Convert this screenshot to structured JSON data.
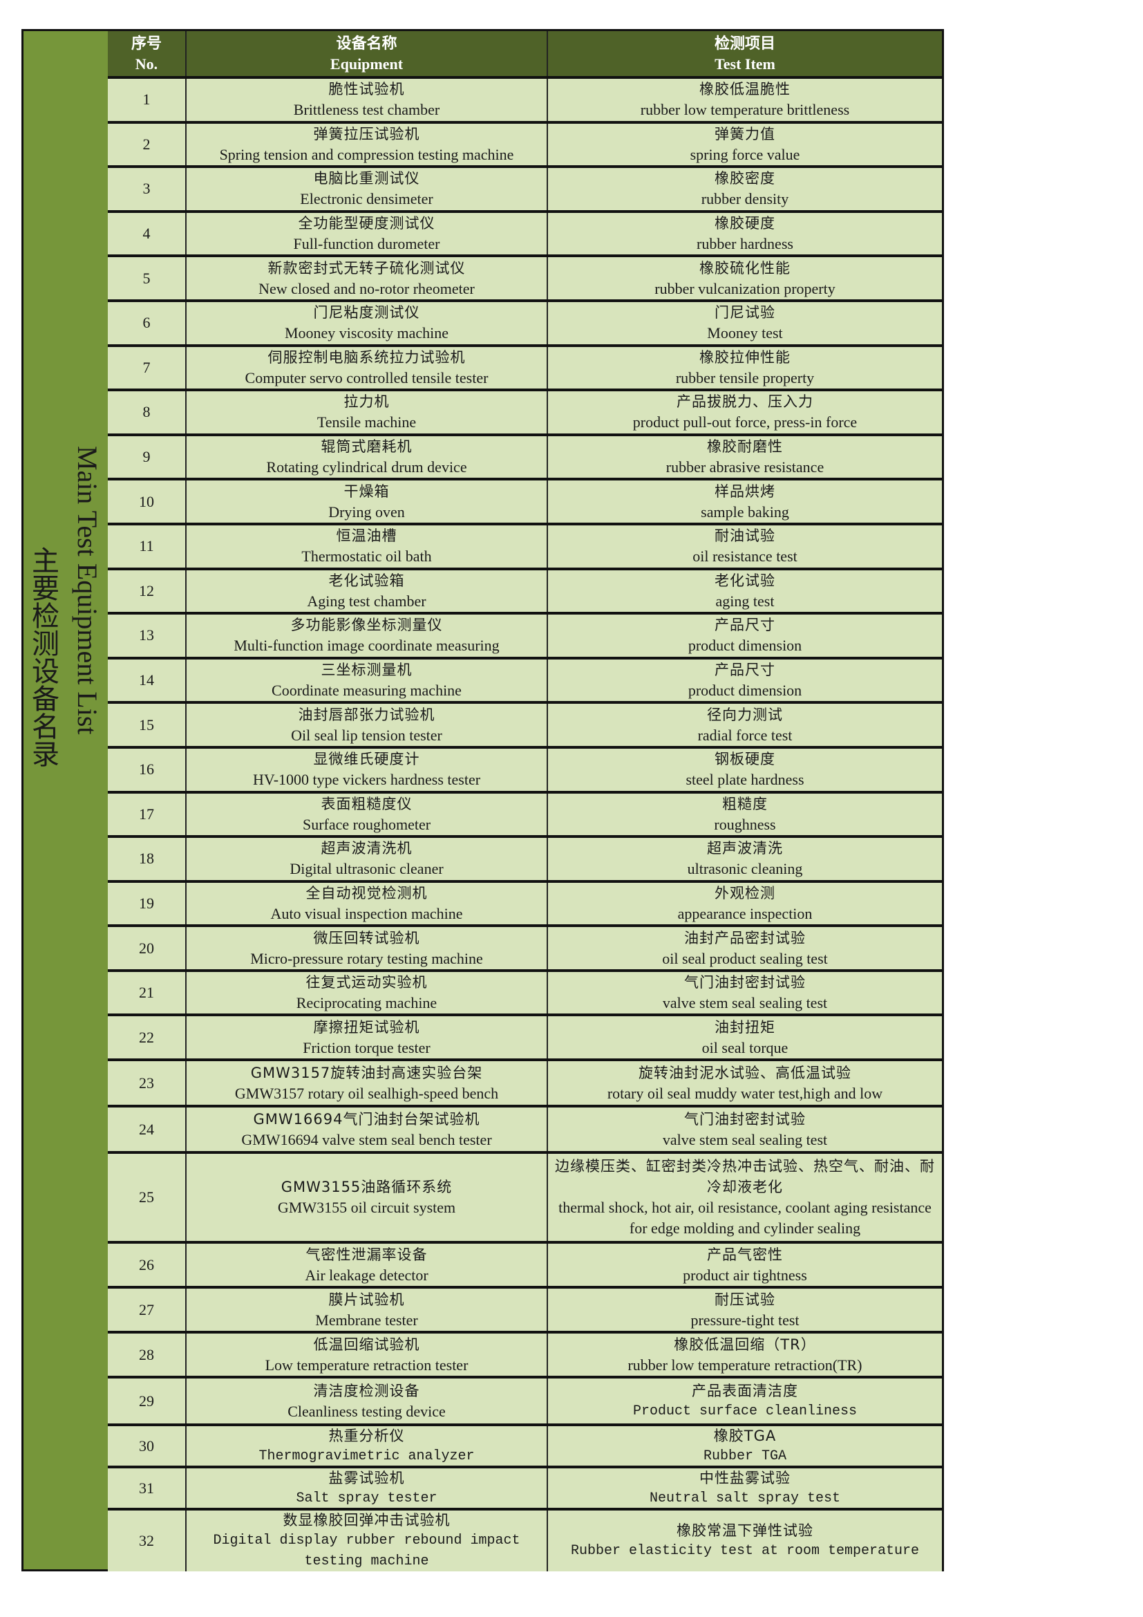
{
  "colors": {
    "side": "#76963a",
    "header": "#4f6228",
    "row": "#d8e4bc",
    "border": "#111111"
  },
  "side_title": {
    "cn": "主要检测设备名录",
    "en": "Main Test Equipment List"
  },
  "header": {
    "no_cn": "序号",
    "no_en": "No.",
    "eq_cn": "设备名称",
    "eq_en": "Equipment",
    "item_cn": "检测项目",
    "item_en": "Test Item"
  },
  "rows": [
    {
      "no": "1",
      "eq_cn": "脆性试验机",
      "eq_en": "Brittleness test chamber",
      "item_cn": "橡胶低温脆性",
      "item_en": "rubber low temperature brittleness"
    },
    {
      "no": "2",
      "eq_cn": "弹簧拉压试验机",
      "eq_en": "Spring tension and compression testing machine",
      "item_cn": "弹簧力值",
      "item_en": "spring force value"
    },
    {
      "no": "3",
      "eq_cn": "电脑比重测试仪",
      "eq_en": "Electronic densimeter",
      "item_cn": "橡胶密度",
      "item_en": "rubber density"
    },
    {
      "no": "4",
      "eq_cn": "全功能型硬度测试仪",
      "eq_en": "Full-function durometer",
      "item_cn": "橡胶硬度",
      "item_en": "rubber hardness"
    },
    {
      "no": "5",
      "eq_cn": "新款密封式无转子硫化测试仪",
      "eq_en": "New closed and no-rotor rheometer",
      "item_cn": "橡胶硫化性能",
      "item_en": "rubber vulcanization property"
    },
    {
      "no": "6",
      "eq_cn": "门尼粘度测试仪",
      "eq_en": "Mooney viscosity machine",
      "item_cn": "门尼试验",
      "item_en": "Mooney test"
    },
    {
      "no": "7",
      "eq_cn": "伺服控制电脑系统拉力试验机",
      "eq_en": "Computer servo controlled tensile tester",
      "item_cn": "橡胶拉伸性能",
      "item_en": "rubber tensile property"
    },
    {
      "no": "8",
      "eq_cn": "拉力机",
      "eq_en": "Tensile machine",
      "item_cn": "产品拔脱力、压入力",
      "item_en": "product pull-out force, press-in force"
    },
    {
      "no": "9",
      "eq_cn": "辊筒式磨耗机",
      "eq_en": "Rotating cylindrical drum device",
      "item_cn": "橡胶耐磨性",
      "item_en": "rubber abrasive resistance"
    },
    {
      "no": "10",
      "eq_cn": "干燥箱",
      "eq_en": "Drying oven",
      "item_cn": "样品烘烤",
      "item_en": "sample baking"
    },
    {
      "no": "11",
      "eq_cn": "恒温油槽",
      "eq_en": "Thermostatic oil bath",
      "item_cn": "耐油试验",
      "item_en": "oil resistance test"
    },
    {
      "no": "12",
      "eq_cn": "老化试验箱",
      "eq_en": "Aging test chamber",
      "item_cn": "老化试验",
      "item_en": "aging test"
    },
    {
      "no": "13",
      "eq_cn": "多功能影像坐标测量仪",
      "eq_en": "Multi-function image coordinate measuring",
      "item_cn": "产品尺寸",
      "item_en": "product dimension"
    },
    {
      "no": "14",
      "eq_cn": "三坐标测量机",
      "eq_en": "Coordinate measuring machine",
      "item_cn": "产品尺寸",
      "item_en": "product dimension"
    },
    {
      "no": "15",
      "eq_cn": "油封唇部张力试验机",
      "eq_en": "Oil seal lip tension tester",
      "item_cn": "径向力测试",
      "item_en": "radial force test"
    },
    {
      "no": "16",
      "eq_cn": "显微维氏硬度计",
      "eq_en": "HV-1000 type vickers hardness tester",
      "item_cn": "钢板硬度",
      "item_en": "steel plate hardness"
    },
    {
      "no": "17",
      "eq_cn": "表面粗糙度仪",
      "eq_en": "Surface roughometer",
      "item_cn": "粗糙度",
      "item_en": "roughness"
    },
    {
      "no": "18",
      "eq_cn": "超声波清洗机",
      "eq_en": "Digital ultrasonic cleaner",
      "item_cn": "超声波清洗",
      "item_en": "ultrasonic cleaning"
    },
    {
      "no": "19",
      "eq_cn": "全自动视觉检测机",
      "eq_en": "Auto visual inspection machine",
      "item_cn": "外观检测",
      "item_en": "appearance inspection"
    },
    {
      "no": "20",
      "eq_cn": "微压回转试验机",
      "eq_en": "Micro-pressure rotary testing machine",
      "item_cn": "油封产品密封试验",
      "item_en": "oil seal product sealing test"
    },
    {
      "no": "21",
      "eq_cn": "往复式运动实验机",
      "eq_en": "Reciprocating machine",
      "item_cn": "气门油封密封试验",
      "item_en": "valve stem seal sealing test"
    },
    {
      "no": "22",
      "eq_cn": "摩擦扭矩试验机",
      "eq_en": "Friction torque tester",
      "item_cn": "油封扭矩",
      "item_en": "oil seal torque"
    },
    {
      "no": "23",
      "eq_cn": "GMW3157旋转油封高速实验台架",
      "eq_en": "GMW3157 rotary oil sealhigh-speed bench",
      "item_cn": "旋转油封泥水试验、高低温试验",
      "item_en": "rotary oil seal muddy water test,high and low"
    },
    {
      "no": "24",
      "eq_cn": "GMW16694气门油封台架试验机",
      "eq_en": "GMW16694 valve stem seal bench tester",
      "item_cn": "气门油封密封试验",
      "item_en": "valve stem seal sealing test"
    },
    {
      "no": "25",
      "eq_cn": "GMW3155油路循环系统",
      "eq_en": "GMW3155 oil circuit system",
      "item_cn": "边缘模压类、缸密封类冷热冲击试验、热空气、耐油、耐冷却液老化",
      "item_en": "thermal shock, hot air, oil resistance, coolant aging resistance for edge molding and cylinder sealing"
    },
    {
      "no": "26",
      "eq_cn": "气密性泄漏率设备",
      "eq_en": "Air leakage detector",
      "item_cn": "产品气密性",
      "item_en": "product air tightness"
    },
    {
      "no": "27",
      "eq_cn": "膜片试验机",
      "eq_en": "Membrane tester",
      "item_cn": "耐压试验",
      "item_en": "pressure-tight test"
    },
    {
      "no": "28",
      "eq_cn": "低温回缩试验机",
      "eq_en": "Low temperature retraction tester",
      "item_cn": "橡胶低温回缩（TR）",
      "item_en": "rubber low temperature retraction(TR)"
    },
    {
      "no": "29",
      "eq_cn": "清洁度检测设备",
      "eq_en": "Cleanliness testing device",
      "item_cn": "产品表面清洁度",
      "item_en": "Product surface cleanliness"
    },
    {
      "no": "30",
      "eq_cn": "热重分析仪",
      "eq_en": "Thermogravimetric analyzer",
      "item_cn": "橡胶TGA",
      "item_en": "Rubber TGA"
    },
    {
      "no": "31",
      "eq_cn": "盐雾试验机",
      "eq_en": "Salt spray tester",
      "item_cn": "中性盐雾试验",
      "item_en": "Neutral salt spray test"
    },
    {
      "no": "32",
      "eq_cn": "数显橡胶回弹冲击试验机",
      "eq_en": "Digital display rubber rebound impact testing machine",
      "item_cn": "橡胶常温下弹性试验",
      "item_en": "Rubber elasticity test at room temperature"
    }
  ]
}
